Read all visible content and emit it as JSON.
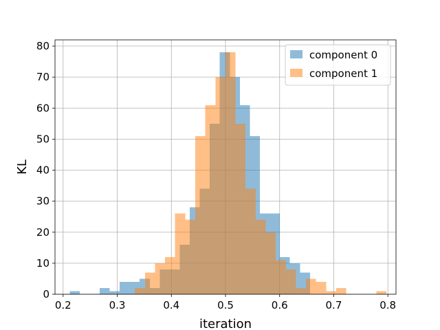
{
  "chart_data": {
    "type": "bar",
    "subtype": "histogram",
    "title": "",
    "xlabel": "iteration",
    "ylabel": "KL",
    "xlim": [
      0.185,
      0.815
    ],
    "ylim": [
      0,
      82
    ],
    "grid": true,
    "legend_position": "top-right",
    "x_ticks": [
      0.2,
      0.3,
      0.4,
      0.5,
      0.6,
      0.7,
      0.8
    ],
    "x_tick_labels": [
      "0.2",
      "0.3",
      "0.4",
      "0.5",
      "0.6",
      "0.7",
      "0.8"
    ],
    "y_ticks": [
      0,
      10,
      20,
      30,
      40,
      50,
      60,
      70,
      80
    ],
    "y_tick_labels": [
      "0",
      "10",
      "20",
      "30",
      "40",
      "50",
      "60",
      "70",
      "80"
    ],
    "series": [
      {
        "name": "component 0",
        "color": "#1f77b4",
        "alpha": 0.5,
        "bin_edges": [
          0.212,
          0.2305,
          0.249,
          0.2675,
          0.286,
          0.3045,
          0.323,
          0.3415,
          0.36,
          0.3785,
          0.397,
          0.4155,
          0.434,
          0.4525,
          0.471,
          0.4895,
          0.508,
          0.5265,
          0.545,
          0.5635,
          0.582,
          0.6005,
          0.619,
          0.6375,
          0.656
        ],
        "counts": [
          1,
          0,
          0,
          2,
          1,
          4,
          4,
          5,
          2,
          8,
          8,
          16,
          28,
          34,
          55,
          78,
          70,
          61,
          51,
          26,
          26,
          12,
          10,
          7
        ]
      },
      {
        "name": "component 1",
        "color": "#ff7f0e",
        "alpha": 0.5,
        "bin_edges": [
          0.3325,
          0.3511,
          0.3697,
          0.3883,
          0.4069,
          0.4255,
          0.4441,
          0.4627,
          0.4813,
          0.4999,
          0.5185,
          0.5371,
          0.5557,
          0.5743,
          0.5929,
          0.6115,
          0.6301,
          0.6487,
          0.6673,
          0.6859,
          0.7045,
          0.7231,
          0.7417,
          0.7603,
          0.7789,
          0.7975
        ],
        "counts": [
          2,
          7,
          10,
          12,
          26,
          24,
          51,
          61,
          70,
          78,
          55,
          34,
          24,
          20,
          11,
          8,
          2,
          5,
          4,
          1,
          2,
          0,
          0,
          0,
          1
        ]
      }
    ]
  }
}
